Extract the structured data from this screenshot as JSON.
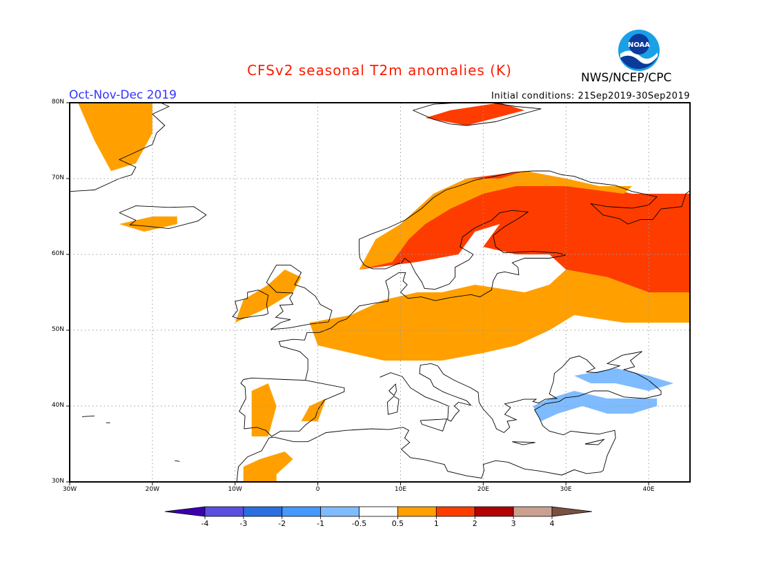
{
  "header": {
    "title": "CFSv2 seasonal T2m anomalies (K)",
    "agency": "NWS/NCEP/CPC",
    "period": "Oct-Nov-Dec 2019",
    "initial_conditions": "Initial conditions: 21Sep2019-30Sep2019",
    "logo_text": "NOAA"
  },
  "colors": {
    "title": "#ff1a00",
    "period": "#3333ff",
    "frame": "#000000",
    "grid": "#9a9a9a",
    "coast": "#000000",
    "land": "#ffffff"
  },
  "map": {
    "lon_range": [
      -30,
      45
    ],
    "lat_range": [
      30,
      80
    ],
    "lat_labels": [
      "30N",
      "40N",
      "50N",
      "60N",
      "70N",
      "80N"
    ],
    "lon_labels": [
      "30W",
      "20W",
      "10W",
      "0",
      "10E",
      "20E",
      "30E",
      "40E"
    ],
    "grid": true
  },
  "colorbar": {
    "labels": [
      "-4",
      "-3",
      "-2",
      "-1",
      "-0.5",
      "0.5",
      "1",
      "2",
      "3",
      "4"
    ],
    "colors": [
      "#3a00b0",
      "#5b4ee0",
      "#2a6fe0",
      "#4499ff",
      "#7fbcff",
      "#ffffff",
      "#ffa000",
      "#ff3c00",
      "#b00000",
      "#caa090",
      "#7a5040"
    ]
  },
  "chart_data": {
    "type": "heatmap",
    "title": "CFSv2 seasonal T2m anomalies (K)",
    "subtitle": "Oct-Nov-Dec 2019",
    "xlabel": "",
    "ylabel": "",
    "xlim": [
      -30,
      45
    ],
    "ylim": [
      30,
      80
    ],
    "levels": [
      -4,
      -3,
      -2,
      -1,
      -0.5,
      0.5,
      1,
      2,
      3,
      4
    ],
    "regions": [
      {
        "category": "1-2",
        "color": "#ff3c00",
        "polygon": [
          [
            5,
            58
          ],
          [
            9,
            60
          ],
          [
            10,
            64
          ],
          [
            14,
            68
          ],
          [
            18,
            70
          ],
          [
            25,
            71
          ],
          [
            30,
            70
          ],
          [
            34,
            69
          ],
          [
            38,
            68
          ],
          [
            45,
            68
          ],
          [
            45,
            55
          ],
          [
            40,
            55
          ],
          [
            35,
            57
          ],
          [
            30,
            58
          ],
          [
            28,
            60
          ],
          [
            24,
            60
          ],
          [
            20,
            61
          ],
          [
            22,
            64
          ],
          [
            19,
            63
          ],
          [
            17,
            60
          ],
          [
            12,
            59
          ]
        ]
      },
      {
        "category": "1-2",
        "color": "#ff3c00",
        "polygon": [
          [
            13,
            78
          ],
          [
            16,
            79
          ],
          [
            22,
            80
          ],
          [
            25,
            79
          ],
          [
            18,
            77
          ]
        ]
      },
      {
        "category": "0.5-1",
        "color": "#ffa000",
        "polygon": [
          [
            -1,
            51
          ],
          [
            4,
            52
          ],
          [
            8,
            54
          ],
          [
            12,
            55
          ],
          [
            15,
            55
          ],
          [
            19,
            56
          ],
          [
            25,
            55
          ],
          [
            28,
            56
          ],
          [
            30,
            58
          ],
          [
            35,
            57
          ],
          [
            40,
            55
          ],
          [
            45,
            55
          ],
          [
            45,
            51
          ],
          [
            37,
            51
          ],
          [
            31,
            52
          ],
          [
            28,
            50
          ],
          [
            24,
            48
          ],
          [
            20,
            47
          ],
          [
            15,
            46
          ],
          [
            12,
            46
          ],
          [
            8,
            46
          ],
          [
            4,
            47
          ],
          [
            0,
            48
          ]
        ]
      },
      {
        "category": "0.5-1",
        "color": "#ffa000",
        "polygon": [
          [
            5,
            58
          ],
          [
            7,
            62
          ],
          [
            10,
            64
          ],
          [
            14,
            68
          ],
          [
            18,
            70
          ],
          [
            22,
            70
          ],
          [
            25,
            71
          ],
          [
            30,
            70
          ],
          [
            34,
            69
          ],
          [
            38,
            69
          ],
          [
            37,
            68
          ],
          [
            30,
            69
          ],
          [
            24,
            69
          ],
          [
            20,
            68
          ],
          [
            16,
            66
          ],
          [
            13,
            64
          ],
          [
            11,
            62
          ],
          [
            9,
            59
          ]
        ]
      },
      {
        "category": "0.5-1",
        "color": "#ffa000",
        "polygon": [
          [
            -10,
            51
          ],
          [
            -6,
            53
          ],
          [
            -3,
            55
          ],
          [
            -2,
            57
          ],
          [
            -4,
            58
          ],
          [
            -6,
            56
          ],
          [
            -9,
            54
          ]
        ]
      },
      {
        "category": "0.5-1",
        "color": "#ffa000",
        "polygon": [
          [
            -24,
            64
          ],
          [
            -20,
            65
          ],
          [
            -17,
            65
          ],
          [
            -17,
            64
          ],
          [
            -21,
            63
          ]
        ]
      },
      {
        "category": "0.5-1",
        "color": "#ffa000",
        "polygon": [
          [
            -29,
            80
          ],
          [
            -20,
            80
          ],
          [
            -20,
            76
          ],
          [
            -22,
            72
          ],
          [
            -25,
            71
          ],
          [
            -27,
            75
          ]
        ]
      },
      {
        "category": "0.5-1",
        "color": "#ffa000",
        "polygon": [
          [
            -8,
            36
          ],
          [
            -6,
            36
          ],
          [
            -5,
            40
          ],
          [
            -6,
            43
          ],
          [
            -8,
            42
          ]
        ]
      },
      {
        "category": "0.5-1",
        "color": "#ffa000",
        "polygon": [
          [
            -9,
            30
          ],
          [
            -5,
            30
          ],
          [
            -5,
            31
          ],
          [
            -3,
            33
          ],
          [
            -4,
            34
          ],
          [
            -7,
            33
          ],
          [
            -9,
            32
          ]
        ]
      },
      {
        "category": "0.5-1",
        "color": "#ffa000",
        "polygon": [
          [
            -2,
            38
          ],
          [
            0,
            38
          ],
          [
            1,
            41
          ],
          [
            -1,
            40
          ]
        ]
      },
      {
        "category": "-1--0.5",
        "color": "#7fbcff",
        "polygon": [
          [
            26,
            40
          ],
          [
            28,
            41
          ],
          [
            31,
            42
          ],
          [
            35,
            41
          ],
          [
            37,
            41
          ],
          [
            40,
            41
          ],
          [
            41,
            41
          ],
          [
            41,
            40
          ],
          [
            38,
            39
          ],
          [
            35,
            39
          ],
          [
            32,
            40
          ],
          [
            29,
            39
          ],
          [
            27,
            38
          ]
        ]
      },
      {
        "category": "-1--0.5",
        "color": "#7fbcff",
        "polygon": [
          [
            31,
            44
          ],
          [
            36,
            45
          ],
          [
            40,
            44
          ],
          [
            43,
            43
          ],
          [
            40,
            42
          ],
          [
            36,
            43
          ],
          [
            33,
            43
          ]
        ]
      }
    ]
  }
}
